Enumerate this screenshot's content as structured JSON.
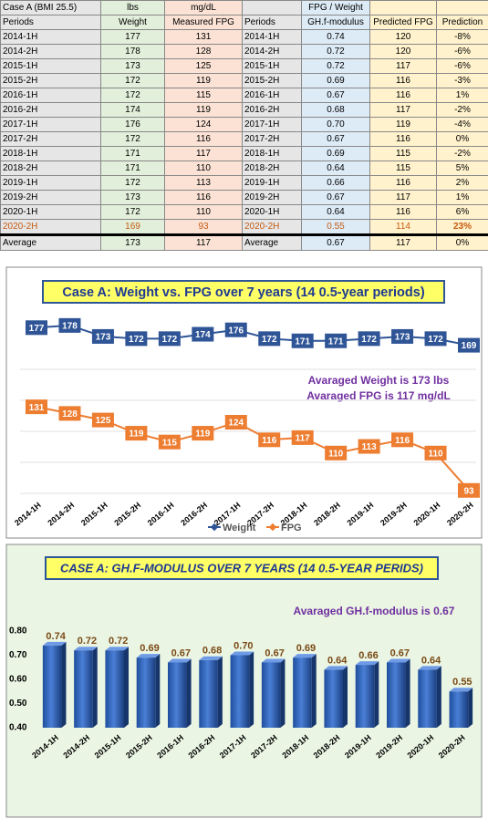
{
  "table": {
    "header": [
      [
        "Case A  (BMI 25.5)",
        "lbs",
        "mg/dL",
        null,
        "FPG / Weight",
        null,
        null
      ],
      [
        "Periods",
        "Weight",
        "Measured FPG",
        "Periods",
        "GH.f-modulus",
        "Predicted FPG",
        "Prediction"
      ]
    ],
    "rows": [
      [
        "2014-1H",
        "177",
        "131",
        "2014-1H",
        "0.74",
        "120",
        "-8%"
      ],
      [
        "2014-2H",
        "178",
        "128",
        "2014-2H",
        "0.72",
        "120",
        "-6%"
      ],
      [
        "2015-1H",
        "173",
        "125",
        "2015-1H",
        "0.72",
        "117",
        "-6%"
      ],
      [
        "2015-2H",
        "172",
        "119",
        "2015-2H",
        "0.69",
        "116",
        "-3%"
      ],
      [
        "2016-1H",
        "172",
        "115",
        "2016-1H",
        "0.67",
        "116",
        "1%"
      ],
      [
        "2016-2H",
        "174",
        "119",
        "2016-2H",
        "0.68",
        "117",
        "-2%"
      ],
      [
        "2017-1H",
        "176",
        "124",
        "2017-1H",
        "0.70",
        "119",
        "-4%"
      ],
      [
        "2017-2H",
        "172",
        "116",
        "2017-2H",
        "0.67",
        "116",
        "0%"
      ],
      [
        "2018-1H",
        "171",
        "117",
        "2018-1H",
        "0.69",
        "115",
        "-2%"
      ],
      [
        "2018-2H",
        "171",
        "110",
        "2018-2H",
        "0.64",
        "115",
        "5%"
      ],
      [
        "2019-1H",
        "172",
        "113",
        "2019-1H",
        "0.66",
        "116",
        "2%"
      ],
      [
        "2019-2H",
        "173",
        "116",
        "2019-2H",
        "0.67",
        "117",
        "1%"
      ],
      [
        "2020-1H",
        "172",
        "110",
        "2020-1H",
        "0.64",
        "116",
        "6%"
      ],
      [
        "2020-2H",
        "169",
        "93",
        "2020-2H",
        "0.55",
        "114",
        "23%"
      ]
    ],
    "average": [
      "Average",
      "173",
      "117",
      "Average",
      "0.67",
      "117",
      "0%"
    ]
  },
  "chart_data": [
    {
      "type": "line",
      "title": "Case A:  Weight vs. FPG over 7 years (14 0.5-year periods)",
      "categories": [
        "2014-1H",
        "2014-2H",
        "2015-1H",
        "2015-2H",
        "2016-1H",
        "2016-2H",
        "2017-1H",
        "2017-2H",
        "2018-1H",
        "2018-2H",
        "2019-1H",
        "2019-2H",
        "2020-1H",
        "2020-2H"
      ],
      "series": [
        {
          "name": "Weight",
          "color": "#2f5597",
          "axis": "y2",
          "values": [
            177,
            178,
            173,
            172,
            172,
            174,
            176,
            172,
            171,
            171,
            172,
            173,
            172,
            169
          ]
        },
        {
          "name": "FPG",
          "color": "#ed7d31",
          "values": [
            131,
            128,
            125,
            119,
            115,
            119,
            124,
            116,
            117,
            110,
            113,
            116,
            110,
            93
          ]
        }
      ],
      "ylim": [
        90,
        175
      ],
      "y2lim": [
        100,
        185
      ],
      "annotations": [
        "Avaraged Weight is 173 lbs",
        "Avaraged FPG is 117 mg/dL"
      ]
    },
    {
      "type": "bar",
      "title": "CASE A:  GH.F-MODULUS OVER 7 YEARS (14 0.5-YEAR PERIDS)",
      "categories": [
        "2014-1H",
        "2014-2H",
        "2015-1H",
        "2015-2H",
        "2016-1H",
        "2016-2H",
        "2017-1H",
        "2017-2H",
        "2018-1H",
        "2018-2H",
        "2019-1H",
        "2019-2H",
        "2020-1H",
        "2020-2H"
      ],
      "values": [
        0.74,
        0.72,
        0.72,
        0.69,
        0.67,
        0.68,
        0.7,
        0.67,
        0.69,
        0.64,
        0.66,
        0.67,
        0.64,
        0.55
      ],
      "value_labels": [
        "0.74",
        "0.72",
        "0.72",
        "0.69",
        "0.67",
        "0.68",
        "0.70",
        "0.67",
        "0.69",
        "0.64",
        "0.66",
        "0.67",
        "0.64",
        "0.55"
      ],
      "color": "#2f5fbf",
      "ylim": [
        0.4,
        0.8
      ],
      "yticks": [
        {
          "value": 0.8,
          "label": "0.80"
        },
        {
          "value": 0.7,
          "label": "0.70"
        },
        {
          "value": 0.6,
          "label": "0.60"
        },
        {
          "value": 0.5,
          "label": "0.50"
        },
        {
          "value": 0.4,
          "label": "0.40"
        }
      ],
      "annotations": [
        "Avaraged GH.f-modulus is 0.67"
      ]
    }
  ]
}
